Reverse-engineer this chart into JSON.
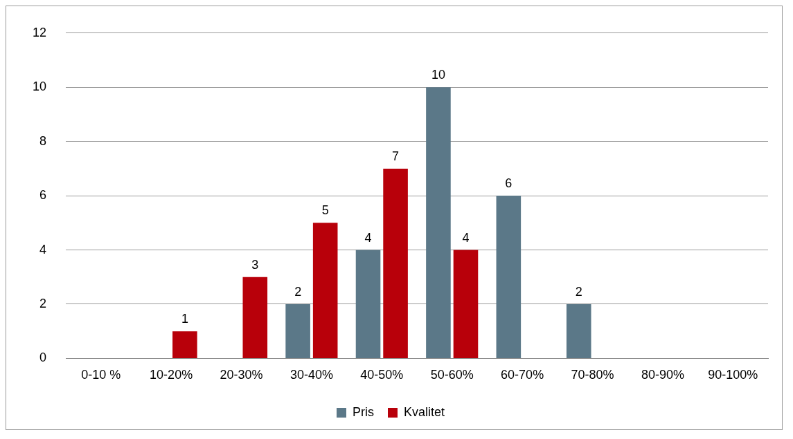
{
  "chart_data": {
    "type": "bar",
    "categories": [
      "0-10 %",
      "10-20%",
      "20-30%",
      "30-40%",
      "40-50%",
      "50-60%",
      "60-70%",
      "70-80%",
      "80-90%",
      "90-100%"
    ],
    "series": [
      {
        "name": "Pris",
        "color": "#5b7888",
        "values": [
          null,
          null,
          null,
          2,
          4,
          10,
          6,
          2,
          null,
          null
        ]
      },
      {
        "name": "Kvalitet",
        "color": "#b8000a",
        "values": [
          null,
          1,
          3,
          5,
          7,
          4,
          null,
          null,
          null,
          null
        ]
      }
    ],
    "ylim": [
      0,
      12
    ],
    "yticks": [
      0,
      2,
      4,
      6,
      8,
      10,
      12
    ],
    "grid": "y",
    "legend": "bottom",
    "data_labels": true
  }
}
